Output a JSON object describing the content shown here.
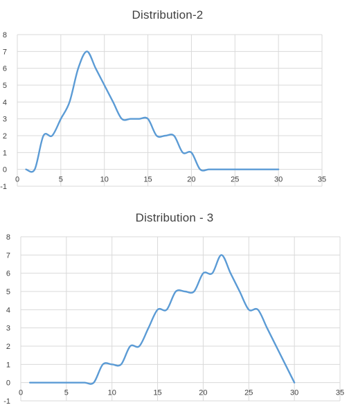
{
  "chart_data": [
    {
      "type": "line",
      "title": "Distribution-2",
      "xlabel": "",
      "ylabel": "",
      "xlim": [
        0,
        35
      ],
      "ylim": [
        -1,
        8
      ],
      "xticks": [
        0,
        5,
        10,
        15,
        20,
        25,
        30,
        35
      ],
      "yticks": [
        -1,
        0,
        1,
        2,
        3,
        4,
        5,
        6,
        7,
        8
      ],
      "grid": true,
      "smooth": true,
      "series_color": "#5b9bd5",
      "series": [
        {
          "x": [
            1,
            2,
            3,
            4,
            5,
            6,
            7,
            8,
            9,
            10,
            11,
            12,
            13,
            14,
            15,
            16,
            17,
            18,
            19,
            20,
            21,
            22,
            23,
            24,
            25,
            26,
            27,
            28,
            29,
            30
          ],
          "y": [
            0,
            0,
            2,
            2,
            3,
            4,
            6,
            7,
            6,
            5,
            4,
            3,
            3,
            3,
            3,
            2,
            2,
            2,
            1,
            1,
            0,
            0,
            0,
            0,
            0,
            0,
            0,
            0,
            0,
            0
          ]
        }
      ]
    },
    {
      "type": "line",
      "title": "Distribution - 3",
      "xlabel": "",
      "ylabel": "",
      "xlim": [
        0,
        35
      ],
      "ylim": [
        -1,
        8
      ],
      "xticks": [
        0,
        5,
        10,
        15,
        20,
        25,
        30,
        35
      ],
      "yticks": [
        -1,
        0,
        1,
        2,
        3,
        4,
        5,
        6,
        7,
        8
      ],
      "grid": true,
      "smooth": true,
      "series_color": "#5b9bd5",
      "series": [
        {
          "x": [
            1,
            2,
            3,
            4,
            5,
            6,
            7,
            8,
            9,
            10,
            11,
            12,
            13,
            14,
            15,
            16,
            17,
            18,
            19,
            20,
            21,
            22,
            23,
            24,
            25,
            26,
            27,
            28,
            29,
            30
          ],
          "y": [
            0,
            0,
            0,
            0,
            0,
            0,
            0,
            0,
            1,
            1,
            1,
            2,
            2,
            3,
            4,
            4,
            5,
            5,
            5,
            6,
            6,
            7,
            6,
            5,
            4,
            4,
            3,
            2,
            1,
            0
          ]
        }
      ]
    }
  ]
}
